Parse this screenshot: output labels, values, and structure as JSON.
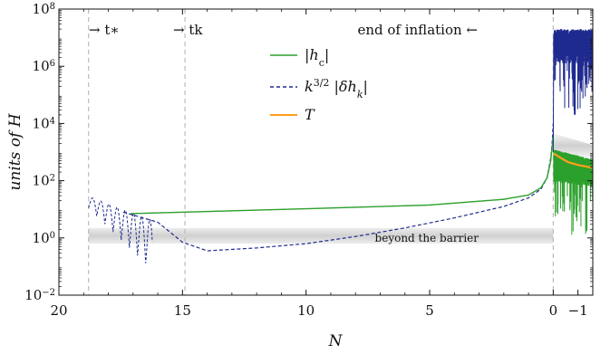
{
  "chart_data": {
    "type": "line",
    "xlabel": "N",
    "ylabel": "units of H",
    "xlim": [
      20,
      -1.6
    ],
    "ylim_log10": [
      -2,
      8
    ],
    "x_ticks": [
      {
        "value": 20,
        "label": "20"
      },
      {
        "value": 15,
        "label": "15"
      },
      {
        "value": 10,
        "label": "10"
      },
      {
        "value": 5,
        "label": "5"
      },
      {
        "value": 0,
        "label": "0"
      },
      {
        "value": -1,
        "label": "−1"
      }
    ],
    "y_ticks": [
      {
        "exp": -2,
        "label": "10",
        "sup": "−2"
      },
      {
        "exp": 0,
        "label": "10",
        "sup": "0"
      },
      {
        "exp": 2,
        "label": "10",
        "sup": "2"
      },
      {
        "exp": 4,
        "label": "10",
        "sup": "4"
      },
      {
        "exp": 6,
        "label": "10",
        "sup": "6"
      },
      {
        "exp": 8,
        "label": "10",
        "sup": "8"
      }
    ],
    "vlines": [
      18.8,
      14.9,
      0
    ],
    "annotations": {
      "t_star": "→ t∗",
      "t_k": "→ tk",
      "end_inflation": "end of inflation ←",
      "barrier": "beyond the barrier"
    },
    "legend": [
      {
        "label": "|hc|",
        "color": "#2ca02c",
        "dash": false
      },
      {
        "label": "k^{3/2} |δhk|",
        "color": "#1f2a8f",
        "dash": true
      },
      {
        "label": "T",
        "color": "#ff9f1c",
        "dash": false
      }
    ],
    "colors": {
      "hc": "#2ca02c",
      "dh": "#1f2a8f",
      "T": "#ff9f1c",
      "band": "#c8c8c8"
    },
    "series": [
      {
        "name": "|hc|",
        "points_log10": [
          [
            17.1,
            0.85
          ],
          [
            15,
            0.9
          ],
          [
            10,
            1.02
          ],
          [
            5,
            1.15
          ],
          [
            2,
            1.35
          ],
          [
            1,
            1.5
          ],
          [
            0.5,
            1.75
          ],
          [
            0.25,
            2.1
          ],
          [
            0.1,
            2.7
          ],
          [
            0.02,
            3.4
          ],
          [
            -0.02,
            3.8
          ]
        ]
      },
      {
        "name": "k^{3/2} |δhk|",
        "points_log10": [
          [
            17.4,
            0.9
          ],
          [
            16,
            0.55
          ],
          [
            15,
            -0.15
          ],
          [
            14,
            -0.45
          ],
          [
            12,
            -0.35
          ],
          [
            10,
            -0.2
          ],
          [
            8,
            0.05
          ],
          [
            6,
            0.35
          ],
          [
            4,
            0.7
          ],
          [
            2,
            1.1
          ],
          [
            1,
            1.4
          ],
          [
            0.5,
            1.7
          ],
          [
            0.25,
            2.1
          ],
          [
            0.1,
            2.8
          ],
          [
            0.02,
            3.5
          ],
          [
            -0.02,
            4.5
          ]
        ]
      },
      {
        "name": "T",
        "points_log10": [
          [
            -0.02,
            2.95
          ],
          [
            -0.3,
            2.8
          ],
          [
            -0.6,
            2.65
          ],
          [
            -1.0,
            2.55
          ],
          [
            -1.6,
            2.45
          ]
        ]
      }
    ]
  }
}
